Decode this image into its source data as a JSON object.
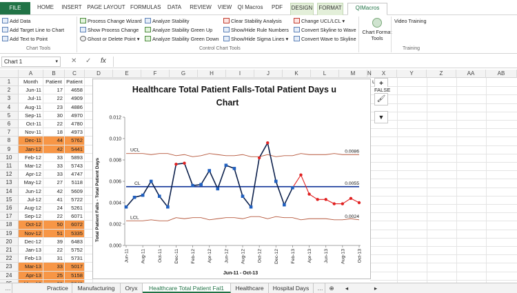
{
  "ribbon_tabs": [
    "FILE",
    "HOME",
    "INSERT",
    "PAGE LAYOUT",
    "FORMULAS",
    "DATA",
    "REVIEW",
    "VIEW",
    "QI Macros",
    "PDF",
    "DESIGN",
    "FORMAT",
    "QIMacros Chart"
  ],
  "ribbon": {
    "col1": [
      "Add Data",
      "Add Target Line to Chart",
      "Add Text to Point"
    ],
    "col2": [
      "Process Change Wizard",
      "Show Process Change",
      "Ghost or Delete Point"
    ],
    "col3": [
      "Analyze Stability",
      "Analyze Stability Green Up",
      "Analyze Stability Green Down"
    ],
    "col4": [
      "Clear Stability Analysis",
      "Show/Hide Rule Numbers",
      "Show/Hide Sigma Lines"
    ],
    "col5": [
      "Change UCL/LCL",
      "Convert Skyline to Wave",
      "Convert Wave to Skyline"
    ],
    "chart_format_tools": "Chart Format Tools",
    "video_training": "Video Training",
    "group_labels": [
      "Chart Tools",
      "Control Chart Tools",
      "Training"
    ]
  },
  "formula_bar": {
    "name_box": "Chart 1",
    "fx": "fx",
    "value": ""
  },
  "columns": [
    "A",
    "B",
    "C",
    "D",
    "E",
    "F",
    "G",
    "H",
    "I",
    "J",
    "K",
    "L",
    "M",
    "N",
    "X",
    "Y",
    "Z",
    "AA",
    "AB"
  ],
  "partial_text": "u",
  "rows": [
    {
      "n": "1",
      "month": "Month",
      "patient": "Patient",
      "days": "Patient"
    },
    {
      "n": "2",
      "month": "Jun-11",
      "patient": "17",
      "days": "4658"
    },
    {
      "n": "3",
      "month": "Jul-11",
      "patient": "22",
      "days": "4909"
    },
    {
      "n": "4",
      "month": "Aug-11",
      "patient": "23",
      "days": "4886"
    },
    {
      "n": "5",
      "month": "Sep-11",
      "patient": "30",
      "days": "4970"
    },
    {
      "n": "6",
      "month": "Oct-11",
      "patient": "22",
      "days": "4780"
    },
    {
      "n": "7",
      "month": "Nov-11",
      "patient": "18",
      "days": "4973"
    },
    {
      "n": "8",
      "month": "Dec-11",
      "patient": "44",
      "days": "5762"
    },
    {
      "n": "9",
      "month": "Jan-12",
      "patient": "42",
      "days": "5441"
    },
    {
      "n": "10",
      "month": "Feb-12",
      "patient": "33",
      "days": "5893"
    },
    {
      "n": "11",
      "month": "Mar-12",
      "patient": "33",
      "days": "5743"
    },
    {
      "n": "12",
      "month": "Apr-12",
      "patient": "33",
      "days": "4747"
    },
    {
      "n": "13",
      "month": "May-12",
      "patient": "27",
      "days": "5118"
    },
    {
      "n": "14",
      "month": "Jun-12",
      "patient": "42",
      "days": "5609"
    },
    {
      "n": "15",
      "month": "Jul-12",
      "patient": "41",
      "days": "5722"
    },
    {
      "n": "16",
      "month": "Aug-12",
      "patient": "24",
      "days": "5261"
    },
    {
      "n": "17",
      "month": "Sep-12",
      "patient": "22",
      "days": "6071"
    },
    {
      "n": "18",
      "month": "Oct-12",
      "patient": "50",
      "days": "6072"
    },
    {
      "n": "19",
      "month": "Nov-12",
      "patient": "51",
      "days": "5335"
    },
    {
      "n": "20",
      "month": "Dec-12",
      "patient": "39",
      "days": "6483"
    },
    {
      "n": "21",
      "month": "Jan-13",
      "patient": "22",
      "days": "5752"
    },
    {
      "n": "22",
      "month": "Feb-13",
      "patient": "31",
      "days": "5731"
    },
    {
      "n": "23",
      "month": "Mar-13",
      "patient": "33",
      "days": "5017"
    },
    {
      "n": "24",
      "month": "Apr-13",
      "patient": "25",
      "days": "5158"
    },
    {
      "n": "25",
      "month": "May-13",
      "patient": "22",
      "days": "5040"
    }
  ],
  "highlight_rows": [
    8,
    9,
    18,
    19,
    23,
    24,
    25
  ],
  "colors": {
    "excel_green": "#217346",
    "highlight": "#f79646",
    "series": "#0b1f4b",
    "marker": "#1f5fbf",
    "out": "#e02020",
    "limits": "#b5563a",
    "center": "#1a3a9c"
  },
  "chart_data": {
    "type": "line",
    "title": "Healthcare Total Patient Falls-Total Patient Days u Chart",
    "xlabel": "Jun-11 - Oct-13",
    "ylabel": "Total Patient Falls - Total Patient Days",
    "ylim": [
      0,
      0.012
    ],
    "yticks": [
      "0.000",
      "0.002",
      "0.004",
      "0.006",
      "0.008",
      "0.010",
      "0.012"
    ],
    "x": [
      "Jun-11",
      "Jul-11",
      "Aug-11",
      "Sep-11",
      "Oct-11",
      "Nov-11",
      "Dec-11",
      "Jan-12",
      "Feb-12",
      "Mar-12",
      "Apr-12",
      "May-12",
      "Jun-12",
      "Jul-12",
      "Aug-12",
      "Sep-12",
      "Oct-12",
      "Nov-12",
      "Dec-12",
      "Jan-13",
      "Feb-13",
      "Mar-13",
      "Apr-13",
      "May-13",
      "Jun-13",
      "Jul-13",
      "Aug-13",
      "Sep-13",
      "Oct-13"
    ],
    "xticks": [
      "Jun-11",
      "Aug-11",
      "Oct-11",
      "Dec-11",
      "Feb-12",
      "Apr-12",
      "Jun-12",
      "Aug-12",
      "Oct-12",
      "Dec-12",
      "Feb-13",
      "Apr-13",
      "Jun-13",
      "Aug-13",
      "Oct-13"
    ],
    "values": [
      0.0036,
      0.0045,
      0.0047,
      0.006,
      0.0046,
      0.0036,
      0.0076,
      0.0077,
      0.0056,
      0.0057,
      0.007,
      0.0053,
      0.0075,
      0.0072,
      0.0046,
      0.0036,
      0.0082,
      0.0096,
      0.006,
      0.0038,
      0.0054,
      0.0066,
      0.0048,
      0.0043,
      0.0043,
      0.0039,
      0.0039,
      0.0044,
      0.004
    ],
    "out_of_control": [
      6,
      7,
      16,
      17
    ],
    "phase_change_index": 21,
    "ucl": [
      0.0086,
      0.0086,
      0.0086,
      0.0085,
      0.0086,
      0.0086,
      0.0084,
      0.0085,
      0.0083,
      0.0084,
      0.0086,
      0.0085,
      0.0084,
      0.0084,
      0.0085,
      0.0083,
      0.0083,
      0.0085,
      0.0083,
      0.0084,
      0.0084,
      0.0086,
      0.0085,
      0.0085,
      0.0085,
      0.0086,
      0.0085,
      0.0085,
      0.0085
    ],
    "lcl": [
      0.0023,
      0.0023,
      0.0023,
      0.0024,
      0.0023,
      0.0023,
      0.0026,
      0.0025,
      0.0026,
      0.0026,
      0.0024,
      0.0025,
      0.0026,
      0.0026,
      0.0025,
      0.0027,
      0.0027,
      0.0025,
      0.0027,
      0.0026,
      0.0026,
      0.0024,
      0.0025,
      0.0025,
      0.0025,
      0.0024,
      0.0024,
      0.0025,
      0.0024
    ],
    "cl": 0.0055,
    "line_labels": {
      "ucl": "UCL",
      "cl": "CL",
      "lcl": "LCL",
      "ucl_value": "0.0086",
      "cl_value": "0.0055",
      "lcl_value": "0.0024"
    }
  },
  "sheet_tabs": [
    "Practice",
    "Manufacturing",
    "Oryx",
    "Healthcare Total Patient Fal1",
    "Healthcare",
    "Hospital Days"
  ],
  "active_sheet": "Healthcare Total Patient Fal1",
  "side_tools": {
    "false_label": "FALSE"
  }
}
